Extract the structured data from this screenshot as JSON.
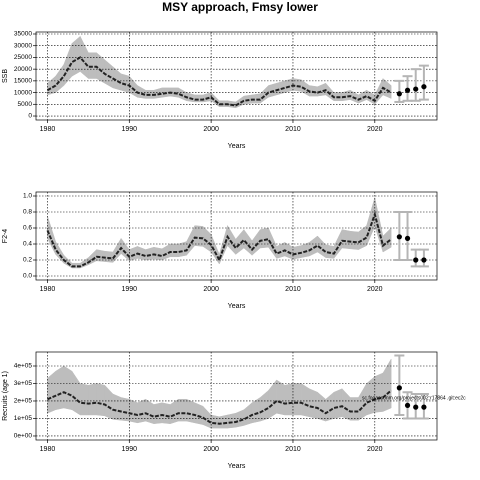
{
  "chart_data": [
    {
      "type": "band-line",
      "title": "MSY approach, Fmsy lower",
      "ylabel": "SSB",
      "xlabel": "Years",
      "x": [
        1980,
        1981,
        1982,
        1983,
        1984,
        1985,
        1986,
        1987,
        1988,
        1989,
        1990,
        1991,
        1992,
        1993,
        1994,
        1995,
        1996,
        1997,
        1998,
        1999,
        2000,
        2001,
        2002,
        2003,
        2004,
        2005,
        2006,
        2007,
        2008,
        2009,
        2010,
        2011,
        2012,
        2013,
        2014,
        2015,
        2016,
        2017,
        2018,
        2019,
        2020,
        2021,
        2022
      ],
      "values": [
        11000,
        13000,
        17000,
        23000,
        25000,
        21000,
        21000,
        18000,
        16000,
        14000,
        13000,
        10000,
        9000,
        9000,
        9500,
        10000,
        9500,
        8000,
        7000,
        7000,
        8000,
        5000,
        5000,
        4500,
        6500,
        7000,
        7000,
        10000,
        11000,
        12000,
        13000,
        12500,
        10500,
        10000,
        11000,
        8000,
        8000,
        8500,
        7000,
        8500,
        6500,
        12000,
        10000
      ],
      "lower": [
        9000,
        10000,
        13000,
        17000,
        19000,
        16000,
        16000,
        14000,
        12000,
        11000,
        10000,
        8000,
        7500,
        7500,
        8000,
        8500,
        8000,
        6500,
        6000,
        6000,
        6500,
        4000,
        4000,
        3500,
        5000,
        5500,
        5500,
        8000,
        9000,
        10000,
        11000,
        10500,
        8500,
        8500,
        9000,
        6500,
        6500,
        7000,
        5500,
        7000,
        5000,
        9000,
        7500
      ],
      "upper": [
        14000,
        17000,
        22000,
        31000,
        34000,
        27000,
        27000,
        24000,
        21000,
        18000,
        17000,
        13000,
        11000,
        11000,
        12000,
        12000,
        12000,
        10000,
        9000,
        9000,
        10000,
        6500,
        6500,
        6000,
        8500,
        9000,
        9500,
        13000,
        14000,
        15000,
        16000,
        15500,
        13000,
        12500,
        14000,
        10000,
        10000,
        11000,
        9000,
        11000,
        9000,
        16000,
        13000
      ],
      "projection": {
        "x": [
          2023,
          2024,
          2025,
          2026
        ],
        "values": [
          9500,
          11000,
          11500,
          12500
        ],
        "lower": [
          6000,
          6500,
          6500,
          7000
        ],
        "upper": [
          15000,
          17000,
          20000,
          21500
        ]
      },
      "xlim": [
        1978.6,
        2027.6
      ],
      "xticks": [
        1980,
        1990,
        2000,
        2010,
        2020
      ],
      "ylim": [
        -1700,
        35850
      ],
      "yticks": [
        0,
        5000,
        10000,
        15000,
        20000,
        25000,
        30000,
        35000
      ],
      "grid": true,
      "band_color": "#bdbdbd",
      "line_color": "#222222",
      "bar_color": "#b5b5b5"
    },
    {
      "type": "band-line",
      "ylabel": "F2-4",
      "xlabel": "Years",
      "x": [
        1980,
        1981,
        1982,
        1983,
        1984,
        1985,
        1986,
        1987,
        1988,
        1989,
        1990,
        1991,
        1992,
        1993,
        1994,
        1995,
        1996,
        1997,
        1998,
        1999,
        2000,
        2001,
        2002,
        2003,
        2004,
        2005,
        2006,
        2007,
        2008,
        2009,
        2010,
        2011,
        2012,
        2013,
        2014,
        2015,
        2016,
        2017,
        2018,
        2019,
        2020,
        2021,
        2022
      ],
      "values": [
        0.57,
        0.33,
        0.2,
        0.12,
        0.12,
        0.17,
        0.24,
        0.23,
        0.22,
        0.35,
        0.24,
        0.28,
        0.25,
        0.27,
        0.25,
        0.3,
        0.3,
        0.32,
        0.48,
        0.47,
        0.39,
        0.2,
        0.49,
        0.35,
        0.45,
        0.33,
        0.44,
        0.46,
        0.28,
        0.32,
        0.27,
        0.29,
        0.32,
        0.38,
        0.3,
        0.28,
        0.44,
        0.43,
        0.42,
        0.48,
        0.77,
        0.38,
        0.46
      ],
      "lower": [
        0.47,
        0.27,
        0.16,
        0.1,
        0.1,
        0.14,
        0.19,
        0.18,
        0.17,
        0.28,
        0.19,
        0.22,
        0.2,
        0.21,
        0.2,
        0.24,
        0.24,
        0.26,
        0.38,
        0.37,
        0.3,
        0.15,
        0.38,
        0.27,
        0.35,
        0.26,
        0.35,
        0.36,
        0.22,
        0.25,
        0.21,
        0.23,
        0.25,
        0.3,
        0.23,
        0.22,
        0.35,
        0.34,
        0.33,
        0.38,
        0.62,
        0.3,
        0.36
      ],
      "upper": [
        0.75,
        0.43,
        0.26,
        0.16,
        0.16,
        0.23,
        0.33,
        0.31,
        0.3,
        0.47,
        0.33,
        0.37,
        0.33,
        0.36,
        0.34,
        0.4,
        0.4,
        0.43,
        0.63,
        0.62,
        0.52,
        0.27,
        0.63,
        0.46,
        0.58,
        0.44,
        0.58,
        0.6,
        0.37,
        0.42,
        0.36,
        0.38,
        0.42,
        0.5,
        0.39,
        0.37,
        0.58,
        0.56,
        0.55,
        0.63,
        0.98,
        0.5,
        0.6
      ],
      "projection": {
        "x": [
          2023,
          2024,
          2025,
          2026
        ],
        "values": [
          0.49,
          0.47,
          0.2,
          0.2
        ],
        "lower": [
          0.2,
          0.2,
          0.12,
          0.12
        ],
        "upper": [
          0.8,
          0.8,
          0.33,
          0.33
        ]
      },
      "xlim": [
        1978.6,
        2027.6
      ],
      "xticks": [
        1980,
        1990,
        2000,
        2010,
        2020
      ],
      "ylim": [
        -0.05,
        1.05
      ],
      "yticks": [
        {
          "value": 0,
          "label": "0.0"
        },
        0.2,
        0.4,
        0.6,
        0.8,
        {
          "value": 1,
          "label": "1.0"
        }
      ],
      "grid": true,
      "band_color": "#bdbdbd",
      "line_color": "#222222",
      "bar_color": "#b5b5b5"
    },
    {
      "type": "band-line",
      "ylabel": "Recruits (age 1)",
      "xlabel": "Years",
      "annotation": "sc.fogassonm.org/projects002:r17864 .git:ec2c",
      "x": [
        1980,
        1981,
        1982,
        1983,
        1984,
        1985,
        1986,
        1987,
        1988,
        1989,
        1990,
        1991,
        1992,
        1993,
        1994,
        1995,
        1996,
        1997,
        1998,
        1999,
        2000,
        2001,
        2002,
        2003,
        2004,
        2005,
        2006,
        2007,
        2008,
        2009,
        2010,
        2011,
        2012,
        2013,
        2014,
        2015,
        2016,
        2017,
        2018,
        2019,
        2020,
        2021,
        2022
      ],
      "values": [
        210000,
        230000,
        250000,
        230000,
        190000,
        185000,
        190000,
        180000,
        150000,
        140000,
        130000,
        120000,
        130000,
        110000,
        120000,
        110000,
        130000,
        130000,
        120000,
        105000,
        75000,
        70000,
        75000,
        80000,
        95000,
        120000,
        135000,
        160000,
        200000,
        185000,
        190000,
        190000,
        170000,
        160000,
        130000,
        160000,
        170000,
        140000,
        140000,
        190000,
        210000,
        220000,
        260000
      ],
      "lower": [
        130000,
        150000,
        160000,
        150000,
        120000,
        120000,
        120000,
        115000,
        95000,
        90000,
        85000,
        75000,
        85000,
        70000,
        75000,
        70000,
        85000,
        85000,
        75000,
        65000,
        45000,
        45000,
        45000,
        50000,
        60000,
        75000,
        85000,
        100000,
        130000,
        120000,
        120000,
        120000,
        110000,
        100000,
        85000,
        100000,
        110000,
        90000,
        90000,
        120000,
        135000,
        140000,
        160000
      ],
      "upper": [
        330000,
        370000,
        400000,
        370000,
        300000,
        290000,
        300000,
        290000,
        240000,
        220000,
        210000,
        190000,
        210000,
        180000,
        190000,
        180000,
        210000,
        210000,
        190000,
        170000,
        120000,
        110000,
        120000,
        130000,
        150000,
        190000,
        220000,
        260000,
        320000,
        290000,
        300000,
        300000,
        270000,
        250000,
        210000,
        250000,
        270000,
        220000,
        220000,
        300000,
        340000,
        360000,
        440000
      ],
      "projection": {
        "x": [
          2023,
          2024,
          2025,
          2026
        ],
        "values": [
          275000,
          175000,
          165000,
          165000
        ],
        "lower": [
          120000,
          100000,
          100000,
          100000
        ],
        "upper": [
          460000,
          250000,
          240000,
          240000
        ]
      },
      "xlim": [
        1978.6,
        2027.6
      ],
      "xticks": [
        1980,
        1990,
        2000,
        2010,
        2020
      ],
      "ylim": [
        -23000,
        480000
      ],
      "yticks": [
        {
          "value": 0,
          "label": "0e+00"
        },
        {
          "value": 100000,
          "label": "1e+05"
        },
        {
          "value": 200000,
          "label": "2e+05"
        },
        {
          "value": 300000,
          "label": "3e+05"
        },
        {
          "value": 400000,
          "label": "4e+05"
        }
      ],
      "grid": true,
      "band_color": "#bdbdbd",
      "line_color": "#222222",
      "bar_color": "#b5b5b5"
    }
  ]
}
